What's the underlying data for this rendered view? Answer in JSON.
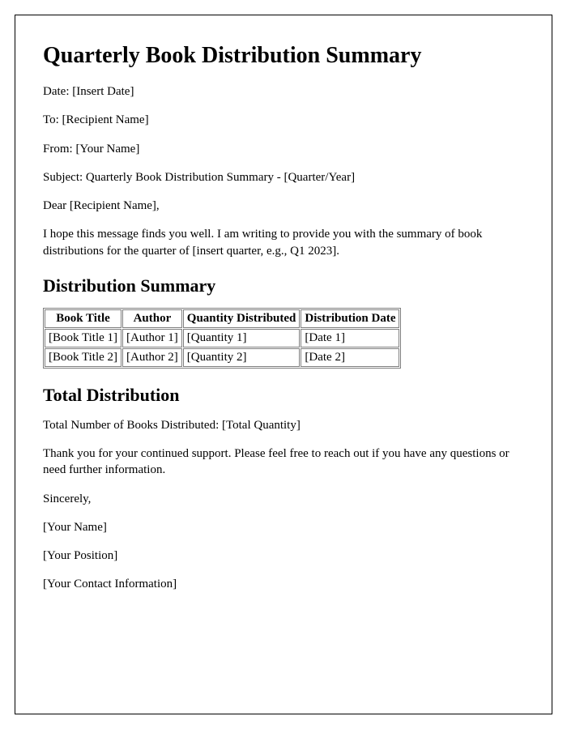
{
  "title": "Quarterly Book Distribution Summary",
  "meta": {
    "date_label": "Date:",
    "date_value": "[Insert Date]",
    "to_label": "To:",
    "to_value": "[Recipient Name]",
    "from_label": "From:",
    "from_value": "[Your Name]",
    "subject_label": "Subject:",
    "subject_value": "Quarterly Book Distribution Summary - [Quarter/Year]"
  },
  "salutation": "Dear [Recipient Name],",
  "intro": "I hope this message finds you well. I am writing to provide you with the summary of book distributions for the quarter of [insert quarter, e.g., Q1 2023].",
  "distribution_heading": "Distribution Summary",
  "table": {
    "headers": [
      "Book Title",
      "Author",
      "Quantity Distributed",
      "Distribution Date"
    ],
    "rows": [
      [
        "[Book Title 1]",
        "[Author 1]",
        "[Quantity 1]",
        "[Date 1]"
      ],
      [
        "[Book Title 2]",
        "[Author 2]",
        "[Quantity 2]",
        "[Date 2]"
      ]
    ]
  },
  "total_heading": "Total Distribution",
  "total_line": "Total Number of Books Distributed: [Total Quantity]",
  "thankyou": "Thank you for your continued support. Please feel free to reach out if you have any questions or need further information.",
  "closing": "Sincerely,",
  "signature": {
    "name": "[Your Name]",
    "position": "[Your Position]",
    "contact": "[Your Contact Information]"
  }
}
